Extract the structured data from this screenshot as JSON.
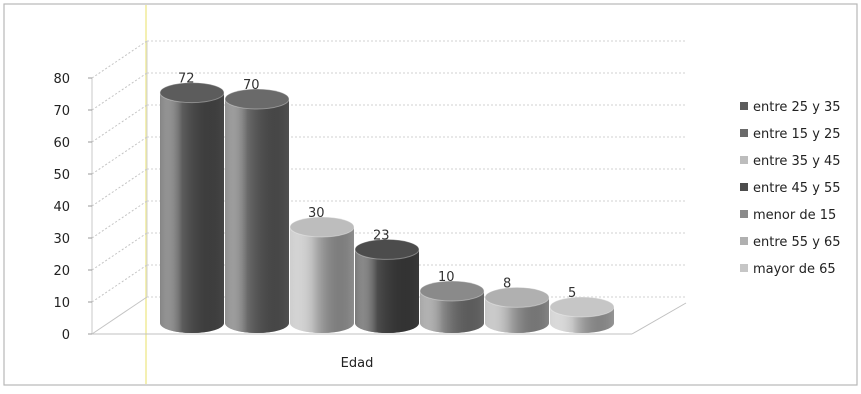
{
  "chart_data": {
    "type": "bar",
    "style": "3d-cylinder",
    "title": "",
    "xlabel": "Edad",
    "ylabel": "",
    "ylim": [
      0,
      80
    ],
    "yticks": [
      0,
      10,
      20,
      30,
      40,
      50,
      60,
      70,
      80
    ],
    "grid": true,
    "legend_position": "right",
    "categories": [
      "entre 25 y 35",
      "entre 15 y 25",
      "entre 35 y 45",
      "entre 45 y 55",
      "menor de 15",
      "entre 55 y 65",
      "mayor de 65"
    ],
    "values": [
      72,
      70,
      30,
      23,
      10,
      8,
      5
    ],
    "series_colors": [
      "#5c5c5c",
      "#6a6a6a",
      "#bdbdbd",
      "#4c4c4c",
      "#8a8a8a",
      "#b0b0b0",
      "#c6c6c6"
    ]
  }
}
